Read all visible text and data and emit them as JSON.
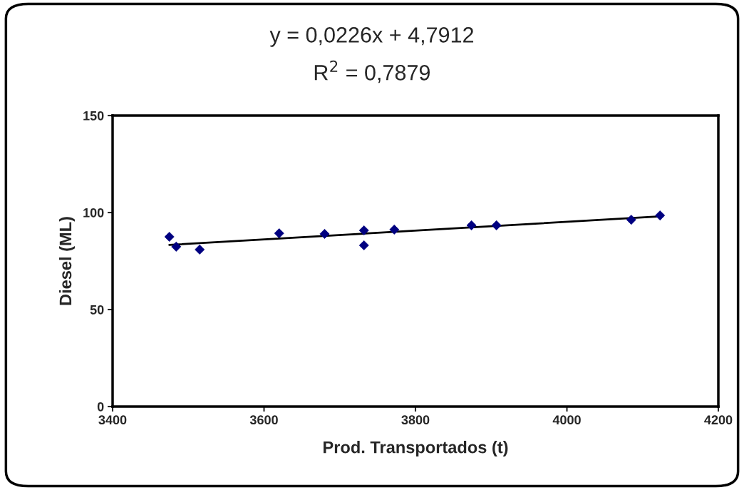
{
  "chart_data": {
    "type": "scatter",
    "xlabel": "Prod. Transportados (t)",
    "ylabel": "Diesel (ML)",
    "annotations": [
      "y = 0,0226x + 4,7912",
      "R$^{2}$ = 0,7879"
    ],
    "series": [
      {
        "color": "#000080",
        "marker": "diamond",
        "x": [
          3475,
          3484,
          3515,
          3620,
          3680,
          3732,
          3732,
          3772,
          3874,
          3907,
          4085,
          4123
        ],
        "values": [
          87.5,
          82.4,
          80.9,
          89.3,
          89.0,
          90.8,
          83.1,
          91.2,
          93.4,
          93.4,
          96.3,
          98.5
        ]
      },
      {
        "type": "line",
        "color": "#000000",
        "marker": "none",
        "line_style": "solid",
        "x": [
          3475,
          4123
        ],
        "values": [
          83.3,
          98.0
        ]
      }
    ],
    "xlim": [
      3400,
      4200
    ],
    "xticks": [
      3400,
      3600,
      3800,
      4000,
      4200
    ],
    "ylim": [
      0,
      150
    ],
    "yticks": [
      0,
      50,
      100,
      150
    ],
    "grid": false,
    "legend": false
  }
}
